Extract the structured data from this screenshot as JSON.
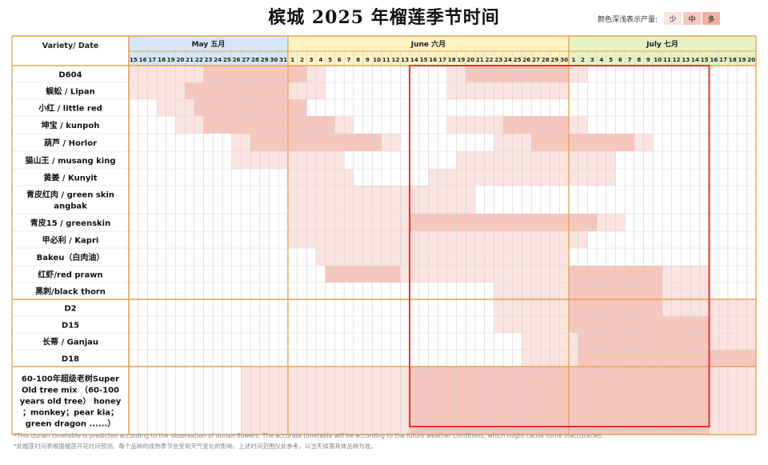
{
  "title": "槟城 2025 年榴莲季节时间",
  "legend": {
    "label": "颜色深浅表示产量:",
    "levels": [
      {
        "name": "少",
        "color": "#fbe3df"
      },
      {
        "name": "中",
        "color": "#f6c6bd"
      },
      {
        "name": "多",
        "color": "#efb0a4"
      }
    ]
  },
  "footnotes": [
    "*This durian timetable is predicted according to the observation of durian flowers. The accurate timetable will be according to the future weather conditions, which might cause some inaccuracies.",
    "*此榴莲时间表根据榴莲开花时间预测。每个品种的成熟季节会受到天气变化的影响，上述时间范围仅此参考，以当天掉落具体品种为准。"
  ],
  "colors": {
    "grid_orange": "#e8a452",
    "may_header": "#d6e6f7",
    "june_header": "#fff3c4",
    "july_header": "#e6f2c6",
    "highlight_red": "#e5322d"
  },
  "chart_data": {
    "type": "heatmap",
    "header_label": "Variety/ Date",
    "months": [
      {
        "label": "May 五月",
        "days": [
          15,
          16,
          17,
          18,
          19,
          20,
          21,
          22,
          23,
          24,
          25,
          26,
          27,
          28,
          29,
          30,
          31
        ]
      },
      {
        "label": "June 六月",
        "days": [
          1,
          2,
          3,
          4,
          5,
          6,
          7,
          8,
          9,
          10,
          11,
          12,
          13,
          14,
          15,
          16,
          17,
          18,
          19,
          20,
          21,
          22,
          23,
          24,
          25,
          26,
          27,
          28,
          29,
          30
        ]
      },
      {
        "label": "July 七月",
        "days": [
          1,
          2,
          3,
          4,
          5,
          6,
          7,
          8,
          9,
          10,
          11,
          12,
          13,
          14,
          15,
          16,
          17,
          18,
          19,
          20
        ]
      }
    ],
    "intensity_scale": {
      "0": "none",
      "1": "少",
      "2": "中",
      "3": "多"
    },
    "highlight_box": {
      "from": "June 14",
      "to": "July 15"
    },
    "varieties": [
      {
        "name": "D604",
        "group": 1,
        "segments": [
          [
            "May 15",
            "May 22",
            1
          ],
          [
            "May 23",
            "May 31",
            2
          ],
          [
            "June 1",
            "June 2",
            2
          ],
          [
            "June 3",
            "June 4",
            1
          ],
          [
            "June 18",
            "June 19",
            1
          ],
          [
            "June 20",
            "June 30",
            2
          ],
          [
            "July 1",
            "July 2",
            1
          ]
        ]
      },
      {
        "name": "蜈蚣 / Lipan",
        "group": 1,
        "segments": [
          [
            "May 15",
            "May 20",
            1
          ],
          [
            "May 21",
            "May 31",
            2
          ],
          [
            "June 1",
            "June 4",
            1
          ],
          [
            "June 18",
            "June 30",
            1
          ]
        ]
      },
      {
        "name": "小红 / little red",
        "group": 1,
        "segments": [
          [
            "May 18",
            "May 21",
            1
          ],
          [
            "May 22",
            "May 31",
            2
          ],
          [
            "June 1",
            "June 2",
            2
          ]
        ]
      },
      {
        "name": "坤宝 / kunpoh",
        "group": 1,
        "segments": [
          [
            "May 20",
            "May 22",
            1
          ],
          [
            "May 23",
            "May 31",
            2
          ],
          [
            "June 1",
            "June 5",
            2
          ],
          [
            "June 6",
            "June 7",
            1
          ],
          [
            "June 18",
            "June 23",
            1
          ],
          [
            "June 24",
            "June 30",
            2
          ],
          [
            "July 1",
            "July 2",
            1
          ]
        ]
      },
      {
        "name": "葫芦 / Horlor",
        "group": 1,
        "segments": [
          [
            "May 26",
            "May 27",
            1
          ],
          [
            "May 28",
            "May 31",
            2
          ],
          [
            "June 1",
            "June 10",
            2
          ],
          [
            "June 11",
            "June 12",
            1
          ],
          [
            "June 23",
            "June 26",
            1
          ],
          [
            "June 27",
            "June 30",
            2
          ],
          [
            "July 1",
            "July 7",
            2
          ],
          [
            "July 8",
            "July 9",
            1
          ]
        ]
      },
      {
        "name": "猫山王 / musang king",
        "group": 1,
        "segments": [
          [
            "May 26",
            "May 31",
            1
          ],
          [
            "June 1",
            "June 6",
            1
          ],
          [
            "June 19",
            "June 30",
            1
          ],
          [
            "July 1",
            "July 5",
            1
          ]
        ]
      },
      {
        "name": "黄姜 / Kunyit",
        "group": 1,
        "segments": [
          [
            "June 1",
            "June 7",
            1
          ],
          [
            "June 16",
            "June 30",
            1
          ],
          [
            "July 1",
            "July 5",
            1
          ]
        ]
      },
      {
        "name": "青皮红肉 / green skin angbak",
        "group": 1,
        "segments": [
          [
            "June 1",
            "June 20",
            1
          ]
        ]
      },
      {
        "name": "青皮15 / greenskin",
        "group": 1,
        "segments": [
          [
            "June 1",
            "June 13",
            1
          ],
          [
            "June 14",
            "June 30",
            2
          ],
          [
            "July 1",
            "July 3",
            2
          ],
          [
            "July 4",
            "July 6",
            1
          ]
        ]
      },
      {
        "name": "甲必利 / Kapri",
        "group": 1,
        "segments": [
          [
            "June 1",
            "June 30",
            1
          ],
          [
            "July 1",
            "July 2",
            1
          ]
        ]
      },
      {
        "name": "Bakeu（白肉油）",
        "group": 1,
        "segments": [
          [
            "June 4",
            "June 30",
            1
          ]
        ]
      },
      {
        "name": "红虾/red prawn",
        "group": 1,
        "segments": [
          [
            "June 5",
            "June 12",
            2
          ],
          [
            "June 13",
            "June 25",
            1
          ],
          [
            "June 26",
            "June 30",
            1
          ],
          [
            "July 1",
            "July 10",
            2
          ],
          [
            "July 11",
            "July 15",
            1
          ]
        ]
      },
      {
        "name": "黑刺/black thorn",
        "group": 1,
        "segments": [
          [
            "June 23",
            "June 30",
            1
          ],
          [
            "July 1",
            "July 10",
            2
          ],
          [
            "July 11",
            "July 15",
            1
          ]
        ]
      },
      {
        "name": "D2",
        "group": 2,
        "segments": [
          [
            "June 23",
            "June 30",
            1
          ],
          [
            "July 1",
            "July 10",
            2
          ],
          [
            "July 11",
            "July 20",
            1
          ]
        ]
      },
      {
        "name": "D15",
        "group": 2,
        "segments": [
          [
            "June 23",
            "June 30",
            1
          ],
          [
            "July 1",
            "July 15",
            2
          ],
          [
            "July 16",
            "July 20",
            1
          ]
        ]
      },
      {
        "name": "长蒂 / Ganjau",
        "group": 2,
        "segments": [
          [
            "June 26",
            "June 30",
            1
          ],
          [
            "July 1",
            "July 1",
            1
          ],
          [
            "July 2",
            "July 15",
            2
          ],
          [
            "July 16",
            "July 20",
            1
          ]
        ]
      },
      {
        "name": "D18",
        "group": 2,
        "segments": [
          [
            "June 26",
            "June 30",
            1
          ],
          [
            "July 1",
            "July 1",
            1
          ],
          [
            "July 2",
            "July 20",
            2
          ]
        ]
      },
      {
        "name": "60-100年超级老树Super Old tree mix （60-100 years old tree） honey ；monkey；pear kia；green dragon ......）",
        "group": 3,
        "segments": [
          [
            "May 27",
            "May 31",
            1
          ],
          [
            "June 1",
            "June 13",
            1
          ],
          [
            "June 14",
            "June 30",
            2
          ],
          [
            "July 1",
            "July 15",
            2
          ],
          [
            "July 16",
            "July 20",
            1
          ]
        ]
      }
    ]
  }
}
